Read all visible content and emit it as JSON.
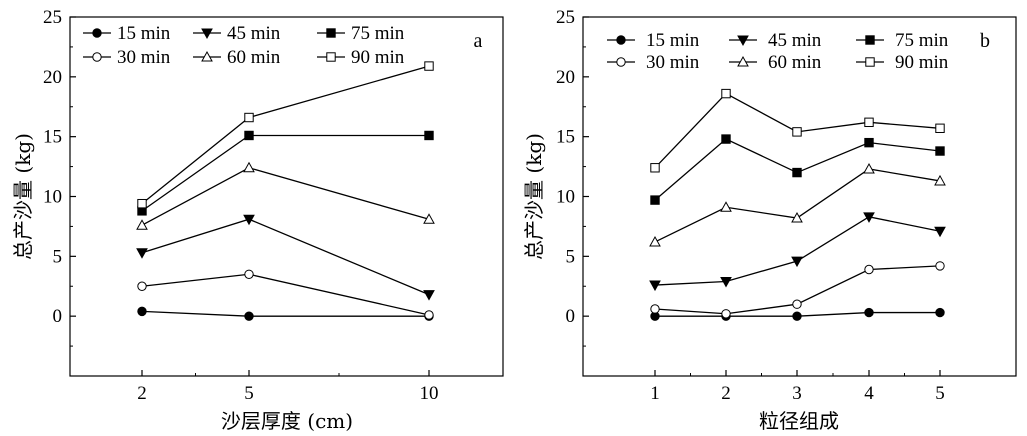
{
  "chart_data": [
    {
      "type": "line",
      "panel_label": "a",
      "xlabel": "沙层厚度 (cm)",
      "ylabel": "总产沙量 (kg)",
      "x": [
        2,
        5,
        10
      ],
      "x_ticks": [
        "2",
        "5",
        "10"
      ],
      "ylim": [
        -5,
        25
      ],
      "y_ticks": [
        "0",
        "5",
        "10",
        "15",
        "20",
        "25"
      ],
      "legend_position": "top",
      "series": [
        {
          "name": "15 min",
          "marker": "circle-filled",
          "values": [
            0.4,
            0.0,
            0.0
          ]
        },
        {
          "name": "30 min",
          "marker": "circle-open",
          "values": [
            2.5,
            3.5,
            0.1
          ]
        },
        {
          "name": "45 min",
          "marker": "triangle-down-filled",
          "values": [
            5.3,
            8.1,
            1.8
          ]
        },
        {
          "name": "60 min",
          "marker": "triangle-up-open",
          "values": [
            7.6,
            12.4,
            8.1
          ]
        },
        {
          "name": "75 min",
          "marker": "square-filled",
          "values": [
            8.8,
            15.1,
            15.1
          ]
        },
        {
          "name": "90 min",
          "marker": "square-open",
          "values": [
            9.4,
            16.6,
            20.9
          ]
        }
      ]
    },
    {
      "type": "line",
      "panel_label": "b",
      "xlabel": "粒径组成",
      "ylabel": "总产沙量 (kg)",
      "x": [
        1,
        2,
        3,
        4,
        5
      ],
      "x_ticks": [
        "1",
        "2",
        "3",
        "4",
        "5"
      ],
      "ylim": [
        -5,
        25
      ],
      "y_ticks": [
        "0",
        "5",
        "10",
        "15",
        "20",
        "25"
      ],
      "legend_position": "top",
      "series": [
        {
          "name": "15 min",
          "marker": "circle-filled",
          "values": [
            0.0,
            0.0,
            0.0,
            0.3,
            0.3
          ]
        },
        {
          "name": "30 min",
          "marker": "circle-open",
          "values": [
            0.6,
            0.2,
            1.0,
            3.9,
            4.2
          ]
        },
        {
          "name": "45 min",
          "marker": "triangle-down-filled",
          "values": [
            2.6,
            2.9,
            4.6,
            8.3,
            7.1
          ]
        },
        {
          "name": "60 min",
          "marker": "triangle-up-open",
          "values": [
            6.2,
            9.1,
            8.2,
            12.3,
            11.3
          ]
        },
        {
          "name": "75 min",
          "marker": "square-filled",
          "values": [
            9.7,
            14.8,
            12.0,
            14.5,
            13.8
          ]
        },
        {
          "name": "90 min",
          "marker": "square-open",
          "values": [
            12.4,
            18.6,
            15.4,
            16.2,
            15.7
          ]
        }
      ]
    }
  ]
}
